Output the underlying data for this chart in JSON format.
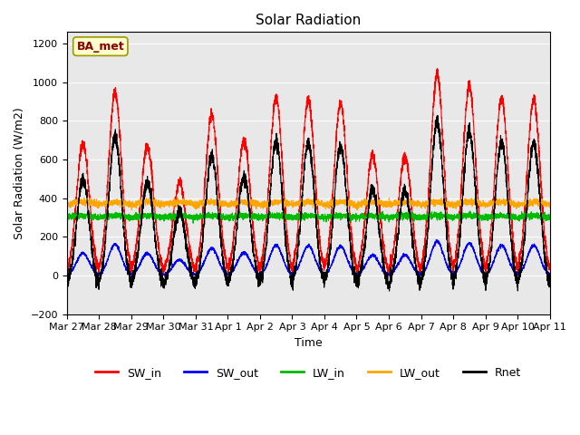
{
  "title": "Solar Radiation",
  "xlabel": "Time",
  "ylabel": "Solar Radiation (W/m2)",
  "ylim": [
    -200,
    1260
  ],
  "yticks": [
    -200,
    0,
    200,
    400,
    600,
    800,
    1000,
    1200
  ],
  "annotation_text": "BA_met",
  "background_color": "#ffffff",
  "plot_bg_color": "#e8e8e8",
  "legend_entries": [
    "SW_in",
    "SW_out",
    "LW_in",
    "LW_out",
    "Rnet"
  ],
  "line_colors": {
    "SW_in": "#ff0000",
    "SW_out": "#0000ff",
    "LW_in": "#00bb00",
    "LW_out": "#ffa500",
    "Rnet": "#000000"
  },
  "n_days": 15,
  "xtick_labels": [
    "Mar 27",
    "Mar 28",
    "Mar 29",
    "Mar 30",
    "Mar 31",
    "Apr 1",
    "Apr 2",
    "Apr 3",
    "Apr 4",
    "Apr 5",
    "Apr 6",
    "Apr 7",
    "Apr 8",
    "Apr 9",
    "Apr 10",
    "Apr 11"
  ],
  "pts_per_day": 288,
  "sw_peaks": [
    680,
    950,
    670,
    480,
    830,
    700,
    920,
    910,
    890,
    620,
    620,
    1040,
    980,
    920,
    910
  ],
  "lw_in_base": 300,
  "lw_out_base": 365,
  "night_rnet": -85
}
